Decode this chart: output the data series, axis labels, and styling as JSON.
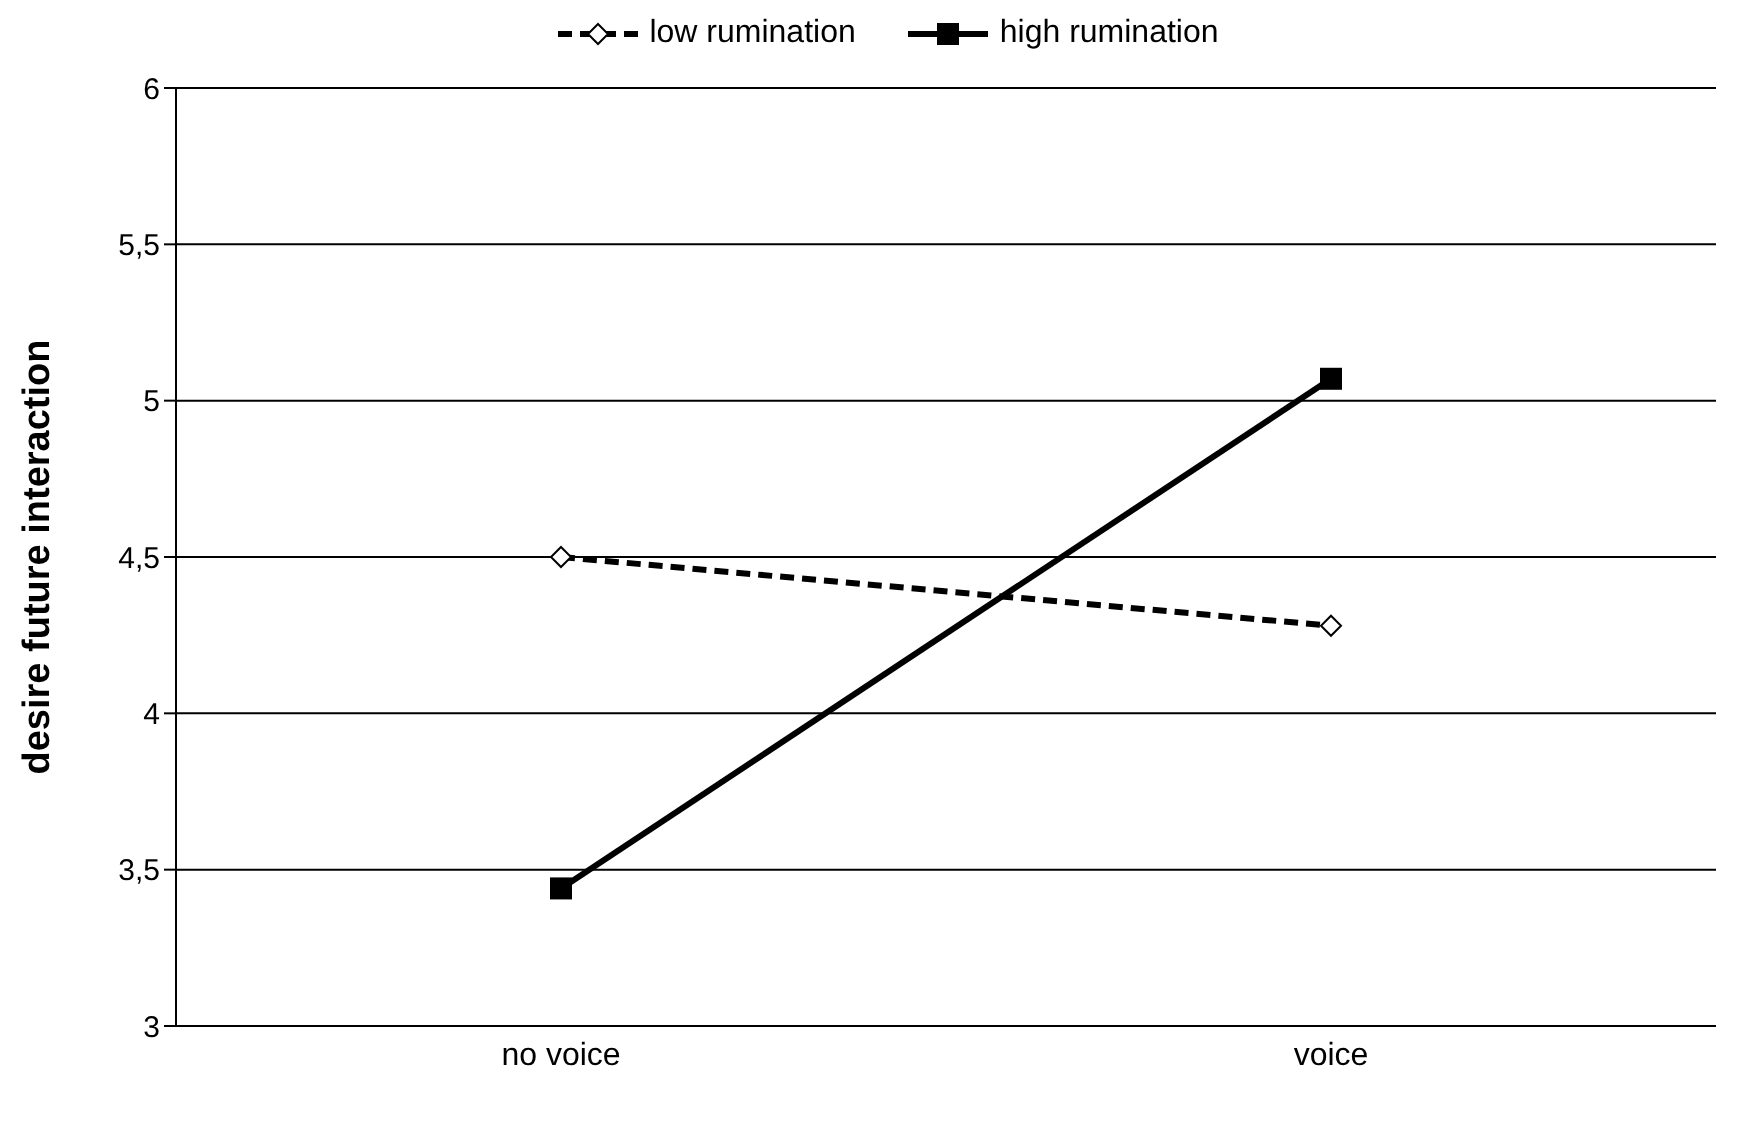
{
  "chart_data": {
    "type": "line",
    "ylabel": "desire future interaction",
    "categories": [
      "no voice",
      "voice"
    ],
    "series": [
      {
        "name": "low rumination",
        "color": "#000000",
        "values": [
          4.5,
          4.28
        ],
        "marker": "diamond",
        "line_style": "dashed"
      },
      {
        "name": "high rumination",
        "color": "#000000",
        "values": [
          3.44,
          5.07
        ],
        "marker": "square",
        "line_style": "solid"
      }
    ],
    "ylim": [
      3,
      6
    ],
    "yticks": [
      3,
      {
        "value": 3.5,
        "label": "3,5"
      },
      4,
      {
        "value": 4.5,
        "label": "4,5"
      },
      5,
      {
        "value": 5.5,
        "label": "5,5"
      },
      6
    ],
    "grid": "y",
    "legend": "top"
  }
}
